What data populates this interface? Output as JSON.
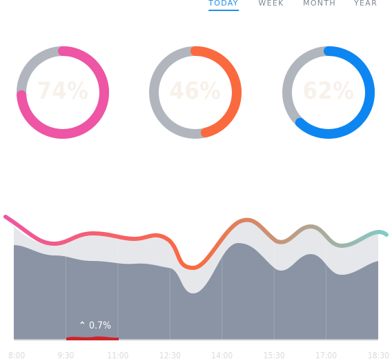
{
  "tabs": [
    {
      "label": "TODAY",
      "active": true
    },
    {
      "label": "WEEK",
      "active": false
    },
    {
      "label": "MONTH",
      "active": false
    },
    {
      "label": "YEAR",
      "active": false
    }
  ],
  "gauges": [
    {
      "value_label": "74%",
      "value": 0.74,
      "color": "#ee55a4"
    },
    {
      "value_label": "46%",
      "value": 0.46,
      "color": "#fb6a3e"
    },
    {
      "value_label": "62%",
      "value": 0.62,
      "color": "#0d86f2"
    }
  ],
  "gauge_track_color": "#b1b6be",
  "chart_data": {
    "type": "area",
    "x_tick_labels": [
      "8:00",
      "9:30",
      "11:00",
      "12:30",
      "14:00",
      "15:30",
      "17:00",
      "18:30"
    ],
    "change_indicator": {
      "label": "0.7%",
      "direction": "up",
      "color": "#d0232a"
    },
    "line_gradient": [
      "#ee55a4",
      "#fb6a3e",
      "#7ecfcb"
    ],
    "fill_color": "#8a94a4",
    "band_color": "#e6e7eb"
  }
}
